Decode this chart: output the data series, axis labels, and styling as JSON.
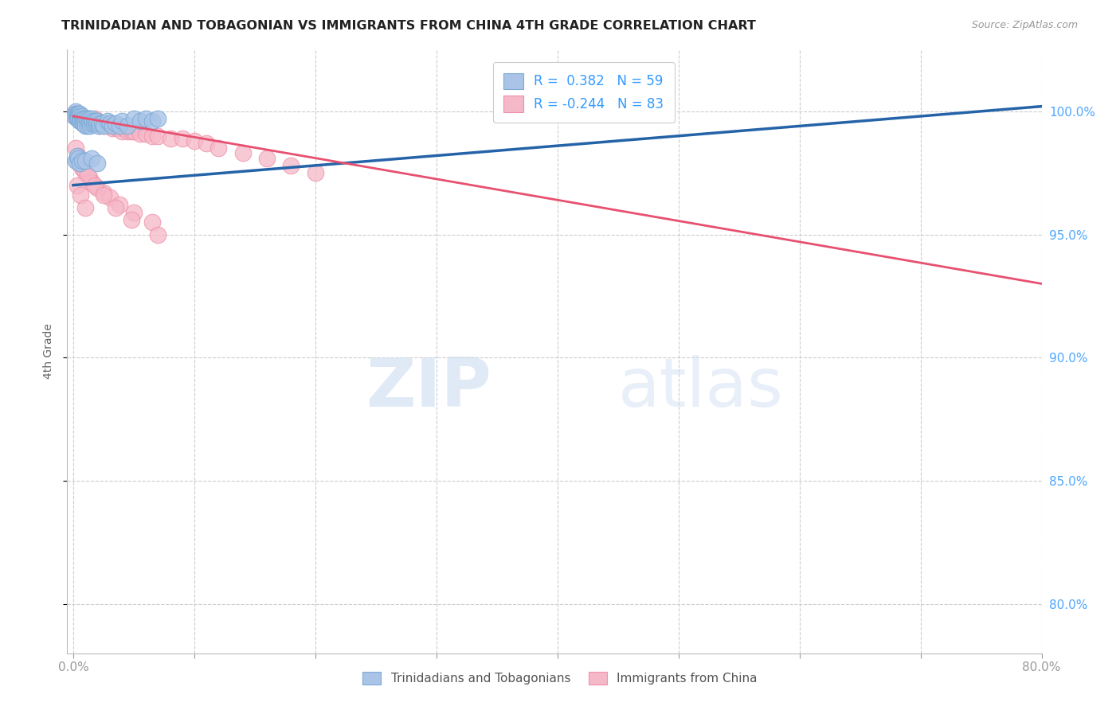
{
  "title": "TRINIDADIAN AND TOBAGONIAN VS IMMIGRANTS FROM CHINA 4TH GRADE CORRELATION CHART",
  "source": "Source: ZipAtlas.com",
  "ylabel": "4th Grade",
  "x_ticks": [
    0.0,
    0.1,
    0.2,
    0.3,
    0.4,
    0.5,
    0.6,
    0.7,
    0.8
  ],
  "y_ticks": [
    0.8,
    0.85,
    0.9,
    0.95,
    1.0
  ],
  "xlim": [
    -0.005,
    0.8
  ],
  "ylim": [
    0.78,
    1.025
  ],
  "blue_R": 0.382,
  "blue_N": 59,
  "pink_R": -0.244,
  "pink_N": 83,
  "legend_label_blue": "Trinidadians and Tobagonians",
  "legend_label_pink": "Immigrants from China",
  "blue_fill": "#aac4e8",
  "pink_fill": "#f5b8c8",
  "blue_edge": "#7aaad4",
  "pink_edge": "#f090a8",
  "blue_line_color": "#2563a8",
  "pink_line_color": "#e85070",
  "blue_trendline_x": [
    0.0,
    0.8
  ],
  "blue_trendline_y": [
    0.97,
    1.002
  ],
  "pink_trendline_x": [
    0.0,
    0.8
  ],
  "pink_trendline_y": [
    0.998,
    0.93
  ],
  "blue_scatter_x": [
    0.001,
    0.002,
    0.002,
    0.003,
    0.003,
    0.003,
    0.004,
    0.004,
    0.004,
    0.005,
    0.005,
    0.005,
    0.006,
    0.006,
    0.007,
    0.007,
    0.008,
    0.008,
    0.009,
    0.009,
    0.01,
    0.01,
    0.011,
    0.012,
    0.012,
    0.013,
    0.013,
    0.014,
    0.015,
    0.015,
    0.016,
    0.017,
    0.018,
    0.019,
    0.02,
    0.021,
    0.022,
    0.024,
    0.025,
    0.028,
    0.03,
    0.032,
    0.035,
    0.038,
    0.04,
    0.045,
    0.05,
    0.055,
    0.06,
    0.065,
    0.07,
    0.002,
    0.003,
    0.004,
    0.005,
    0.007,
    0.01,
    0.015,
    0.02
  ],
  "blue_scatter_y": [
    0.998,
    1.0,
    0.999,
    0.999,
    0.998,
    0.997,
    0.999,
    0.998,
    0.997,
    0.999,
    0.998,
    0.996,
    0.997,
    0.996,
    0.998,
    0.996,
    0.997,
    0.995,
    0.997,
    0.995,
    0.996,
    0.994,
    0.997,
    0.996,
    0.994,
    0.997,
    0.995,
    0.994,
    0.997,
    0.995,
    0.996,
    0.995,
    0.996,
    0.995,
    0.996,
    0.994,
    0.995,
    0.995,
    0.994,
    0.996,
    0.995,
    0.994,
    0.995,
    0.994,
    0.996,
    0.994,
    0.997,
    0.996,
    0.997,
    0.996,
    0.997,
    0.98,
    0.982,
    0.981,
    0.979,
    0.98,
    0.98,
    0.981,
    0.979
  ],
  "pink_scatter_x": [
    0.001,
    0.002,
    0.002,
    0.003,
    0.003,
    0.004,
    0.004,
    0.005,
    0.005,
    0.006,
    0.006,
    0.007,
    0.007,
    0.008,
    0.008,
    0.009,
    0.01,
    0.01,
    0.011,
    0.012,
    0.012,
    0.013,
    0.014,
    0.015,
    0.016,
    0.017,
    0.018,
    0.019,
    0.02,
    0.021,
    0.022,
    0.024,
    0.025,
    0.026,
    0.028,
    0.03,
    0.032,
    0.034,
    0.036,
    0.038,
    0.04,
    0.042,
    0.045,
    0.048,
    0.05,
    0.055,
    0.06,
    0.065,
    0.07,
    0.08,
    0.09,
    0.1,
    0.11,
    0.12,
    0.14,
    0.16,
    0.18,
    0.2,
    0.003,
    0.005,
    0.007,
    0.01,
    0.013,
    0.016,
    0.02,
    0.025,
    0.03,
    0.038,
    0.05,
    0.065,
    0.002,
    0.004,
    0.006,
    0.008,
    0.012,
    0.018,
    0.025,
    0.035,
    0.048,
    0.07,
    0.003,
    0.006,
    0.01
  ],
  "pink_scatter_y": [
    0.999,
    0.999,
    0.998,
    0.998,
    0.997,
    0.999,
    0.997,
    0.998,
    0.997,
    0.998,
    0.996,
    0.997,
    0.996,
    0.997,
    0.995,
    0.997,
    0.997,
    0.995,
    0.996,
    0.997,
    0.995,
    0.997,
    0.996,
    0.996,
    0.996,
    0.995,
    0.997,
    0.995,
    0.996,
    0.994,
    0.995,
    0.995,
    0.994,
    0.995,
    0.994,
    0.995,
    0.993,
    0.994,
    0.993,
    0.994,
    0.992,
    0.993,
    0.992,
    0.992,
    0.992,
    0.991,
    0.991,
    0.99,
    0.99,
    0.989,
    0.989,
    0.988,
    0.987,
    0.985,
    0.983,
    0.981,
    0.978,
    0.975,
    0.98,
    0.979,
    0.977,
    0.975,
    0.973,
    0.971,
    0.969,
    0.967,
    0.965,
    0.962,
    0.959,
    0.955,
    0.985,
    0.982,
    0.98,
    0.977,
    0.974,
    0.97,
    0.966,
    0.961,
    0.956,
    0.95,
    0.97,
    0.966,
    0.961
  ],
  "watermark_zip": "ZIP",
  "watermark_atlas": "atlas",
  "background_color": "#ffffff",
  "grid_color": "#cccccc",
  "title_color": "#222222",
  "axis_label_color": "#666666",
  "right_tick_color": "#4da6ff",
  "legend_r_color": "#3399ff"
}
